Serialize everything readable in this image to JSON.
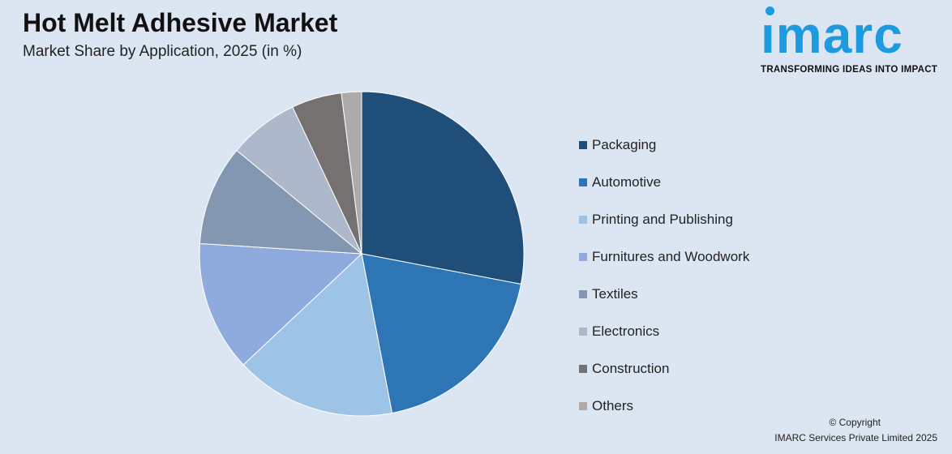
{
  "header": {
    "title": "Hot Melt Adhesive Market",
    "subtitle": "Market Share by Application, 2025 (in %)"
  },
  "logo": {
    "word": "imarc",
    "tagline": "TRANSFORMING IDEAS INTO IMPACT",
    "color": "#1e9be0"
  },
  "copyright": {
    "line1": "© Copyright",
    "line2": "IMARC Services Private Limited 2025"
  },
  "chart_data": {
    "type": "pie",
    "title": "Hot Melt Adhesive Market",
    "subtitle": "Market Share by Application, 2025 (in %)",
    "legend_placement": "right",
    "start_angle": "top, clockwise",
    "categories": [
      "Packaging",
      "Automotive",
      "Printing and Publishing",
      "Furnitures and Woodwork",
      "Textiles",
      "Electronics",
      "Construction",
      "Others"
    ],
    "values": [
      28,
      19,
      16,
      13,
      10,
      7,
      5,
      2
    ],
    "colors": [
      "#1f4e79",
      "#2e75b6",
      "#9dc3e6",
      "#8faadc",
      "#8497b0",
      "#adb9ca",
      "#767171",
      "#aeaaaa"
    ]
  }
}
